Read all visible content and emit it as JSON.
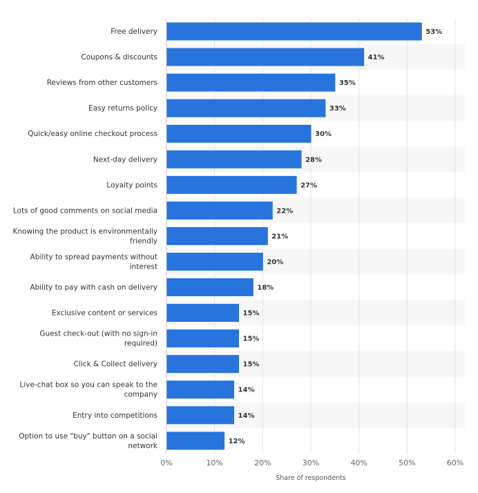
{
  "chart_data": {
    "type": "bar",
    "orientation": "horizontal",
    "categories": [
      [
        "Free delivery"
      ],
      [
        "Coupons & discounts"
      ],
      [
        "Reviews from other customers"
      ],
      [
        "Easy returns policy"
      ],
      [
        "Quick/easy online checkout process"
      ],
      [
        "Next-day delivery"
      ],
      [
        "Loyalty points"
      ],
      [
        "Lots of good comments on social media"
      ],
      [
        "Knowing the product is environmentally",
        "friendly"
      ],
      [
        "Ability to spread payments without",
        "interest"
      ],
      [
        "Ability to pay with cash on delivery"
      ],
      [
        "Exclusive content or services"
      ],
      [
        "Guest check-out (with no sign-in",
        "required)"
      ],
      [
        "Click & Collect delivery"
      ],
      [
        "Live-chat box so you can speak to the",
        "company"
      ],
      [
        "Entry into competitions"
      ],
      [
        "Option to use \"buy\" button on a social",
        "network"
      ]
    ],
    "values": [
      53,
      41,
      35,
      33,
      30,
      28,
      27,
      22,
      21,
      20,
      18,
      15,
      15,
      15,
      14,
      14,
      12
    ],
    "value_labels": [
      "53%",
      "41%",
      "35%",
      "33%",
      "30%",
      "28%",
      "27%",
      "22%",
      "21%",
      "20%",
      "18%",
      "15%",
      "15%",
      "15%",
      "14%",
      "14%",
      "12%"
    ],
    "xlim": [
      0,
      60
    ],
    "x_ticks": [
      "0%",
      "10%",
      "20%",
      "30%",
      "40%",
      "50%",
      "60%"
    ],
    "xlabel": "Share of respondents",
    "ylabel": "",
    "title": "",
    "grid": true,
    "bar_color": "#2874dd",
    "alt_row_color": "#f7f7f7",
    "grid_color": "#e4e4e4"
  }
}
